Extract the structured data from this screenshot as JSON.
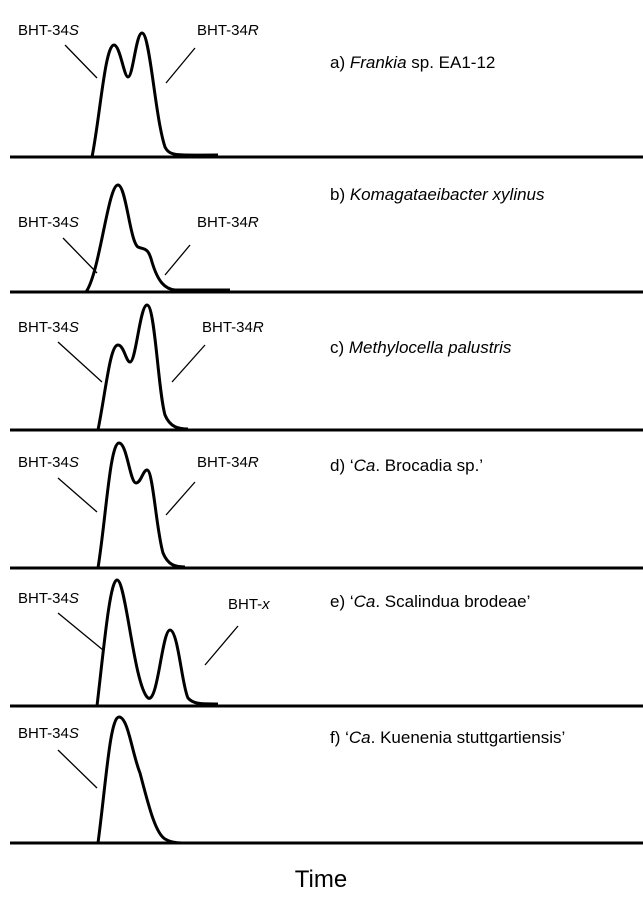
{
  "panels": [
    {
      "title": {
        "prefix": "a) ",
        "italic": "Frankia",
        "suffix": " sp. EA1-12"
      },
      "peaks": [
        {
          "text": "BHT-34",
          "italic": "S"
        },
        {
          "text": "BHT-34",
          "italic": "R"
        }
      ]
    },
    {
      "title": {
        "prefix": "b) ",
        "italic": "Komagataeibacter xylinus"
      },
      "peaks": [
        {
          "text": "BHT-34",
          "italic": "S"
        },
        {
          "text": "BHT-34",
          "italic": "R"
        }
      ]
    },
    {
      "title": {
        "prefix": "c) ",
        "italic": "Methylocella palustris"
      },
      "peaks": [
        {
          "text": "BHT-34",
          "italic": "S"
        },
        {
          "text": "BHT-34",
          "italic": "R"
        }
      ]
    },
    {
      "title": {
        "prefix": "d) ‘",
        "italic": "Ca",
        "suffix": ". Brocadia sp.’"
      },
      "peaks": [
        {
          "text": "BHT-34",
          "italic": "S"
        },
        {
          "text": "BHT-34",
          "italic": "R"
        }
      ]
    },
    {
      "title": {
        "prefix": "e) ‘",
        "italic": "Ca",
        "suffix": ". Scalindua brodeae’"
      },
      "peaks": [
        {
          "text": "BHT-34",
          "italic": "S"
        },
        {
          "text": "BHT-",
          "italic": "x"
        }
      ]
    },
    {
      "title": {
        "prefix": "f) ‘",
        "italic": "Ca",
        "suffix": ". Kuenenia stuttgartiensis’"
      },
      "peaks": [
        {
          "text": "BHT-34",
          "italic": "S"
        }
      ]
    }
  ],
  "x_axis_label": "Time"
}
